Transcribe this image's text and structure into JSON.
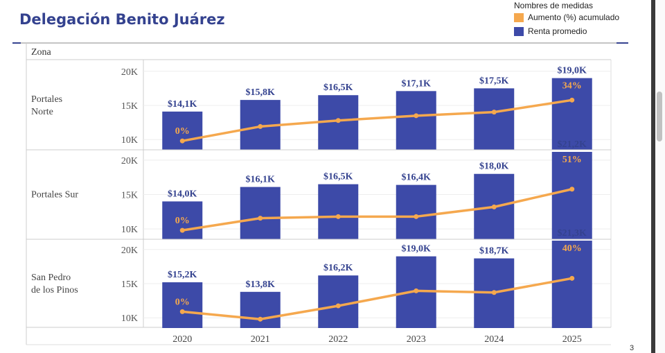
{
  "page": {
    "title": "Delegación Benito Juárez",
    "page_number": "3"
  },
  "legend": {
    "title": "Nombres de medidas",
    "items": [
      {
        "label": "Aumento (%) acumulado",
        "color": "#f5a84e"
      },
      {
        "label": "Renta promedio",
        "color": "#3d4aa8"
      }
    ]
  },
  "chart_data": {
    "type": "bar",
    "row_header": "Zona",
    "categories": [
      "2020",
      "2021",
      "2022",
      "2023",
      "2024",
      "2025"
    ],
    "y_ticks": [
      "10K",
      "15K",
      "20K"
    ],
    "ylim": [
      8500,
      21500
    ],
    "colors": {
      "bar": "#3d4aa8",
      "line": "#f5a84e",
      "bar_label": "#34428f",
      "pct_label": "#f5a84e"
    },
    "panels": [
      {
        "zone_lines": [
          "Portales",
          "Norte"
        ],
        "values": [
          14100,
          15800,
          16500,
          17100,
          17500,
          19000
        ],
        "bar_labels": [
          "$14,1K",
          "$15,8K",
          "$16,5K",
          "$17,1K",
          "$17,5K",
          "$19,0K"
        ],
        "pct_line": [
          0,
          12,
          17,
          21,
          24,
          34
        ],
        "pct_labels": [
          "0%",
          "",
          "",
          "",
          "",
          "34%"
        ]
      },
      {
        "zone_lines": [
          "Portales Sur"
        ],
        "values": [
          14000,
          16100,
          16500,
          16400,
          18000,
          21200
        ],
        "bar_labels": [
          "$14,0K",
          "$16,1K",
          "$16,5K",
          "$16,4K",
          "$18,0K",
          "$21,2K"
        ],
        "pct_line": [
          0,
          15,
          17,
          17,
          29,
          51
        ],
        "pct_labels": [
          "0%",
          "",
          "",
          "",
          "",
          "51%"
        ]
      },
      {
        "zone_lines": [
          "San Pedro",
          "de los Pinos"
        ],
        "values": [
          15200,
          13800,
          16200,
          19000,
          18700,
          21300
        ],
        "bar_labels": [
          "$15,2K",
          "$13,8K",
          "$16,2K",
          "$19,0K",
          "$18,7K",
          "$21,3K"
        ],
        "pct_line": [
          0,
          -9,
          7,
          25,
          23,
          40
        ],
        "pct_labels": [
          "0%",
          "",
          "",
          "",
          "",
          "40%"
        ]
      }
    ]
  }
}
